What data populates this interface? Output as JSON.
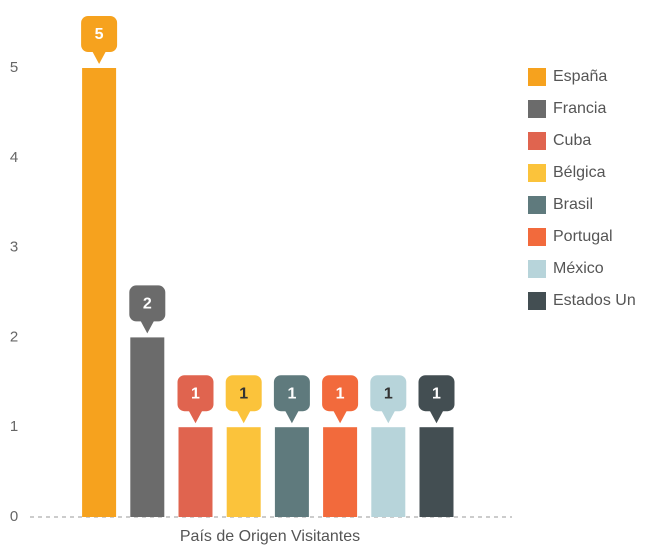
{
  "chart_data": {
    "type": "bar",
    "x_label": "País de Origen Visitantes",
    "categories": [
      "España",
      "Francia",
      "Cuba",
      "Bélgica",
      "Brasil",
      "Portugal",
      "México",
      "Estados Un"
    ],
    "values": [
      5,
      2,
      1,
      1,
      1,
      1,
      1,
      1
    ],
    "colors": [
      "#f6a21e",
      "#6b6b6b",
      "#e0644f",
      "#fbc33b",
      "#5f7a7d",
      "#f26a3c",
      "#b7d4da",
      "#434e52"
    ],
    "ylim": [
      0,
      5
    ],
    "yticks": [
      0,
      1,
      2,
      3,
      4,
      5
    ],
    "grid": false,
    "legend": "right"
  }
}
